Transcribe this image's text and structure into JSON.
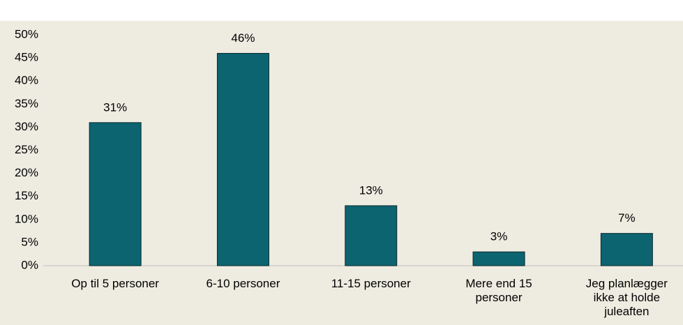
{
  "chart_data": {
    "type": "bar",
    "categories": [
      "Op til 5 personer",
      "6-10 personer",
      "11-15 personer",
      "Mere end 15 personer",
      "Jeg planlægger ikke at holde juleaften"
    ],
    "values": [
      31,
      46,
      13,
      3,
      7
    ],
    "value_labels": [
      "31%",
      "46%",
      "13%",
      "3%",
      "7%"
    ],
    "color": "#0b6470",
    "ylim": [
      0,
      50
    ],
    "yticks": [
      {
        "value": 0,
        "label": "0%"
      },
      {
        "value": 5,
        "label": "5%"
      },
      {
        "value": 10,
        "label": "10%"
      },
      {
        "value": 15,
        "label": "15%"
      },
      {
        "value": 20,
        "label": "20%"
      },
      {
        "value": 25,
        "label": "25%"
      },
      {
        "value": 30,
        "label": "30%"
      },
      {
        "value": 35,
        "label": "35%"
      },
      {
        "value": 40,
        "label": "40%"
      },
      {
        "value": 45,
        "label": "45%"
      },
      {
        "value": 50,
        "label": "50%"
      }
    ],
    "grid": false
  }
}
